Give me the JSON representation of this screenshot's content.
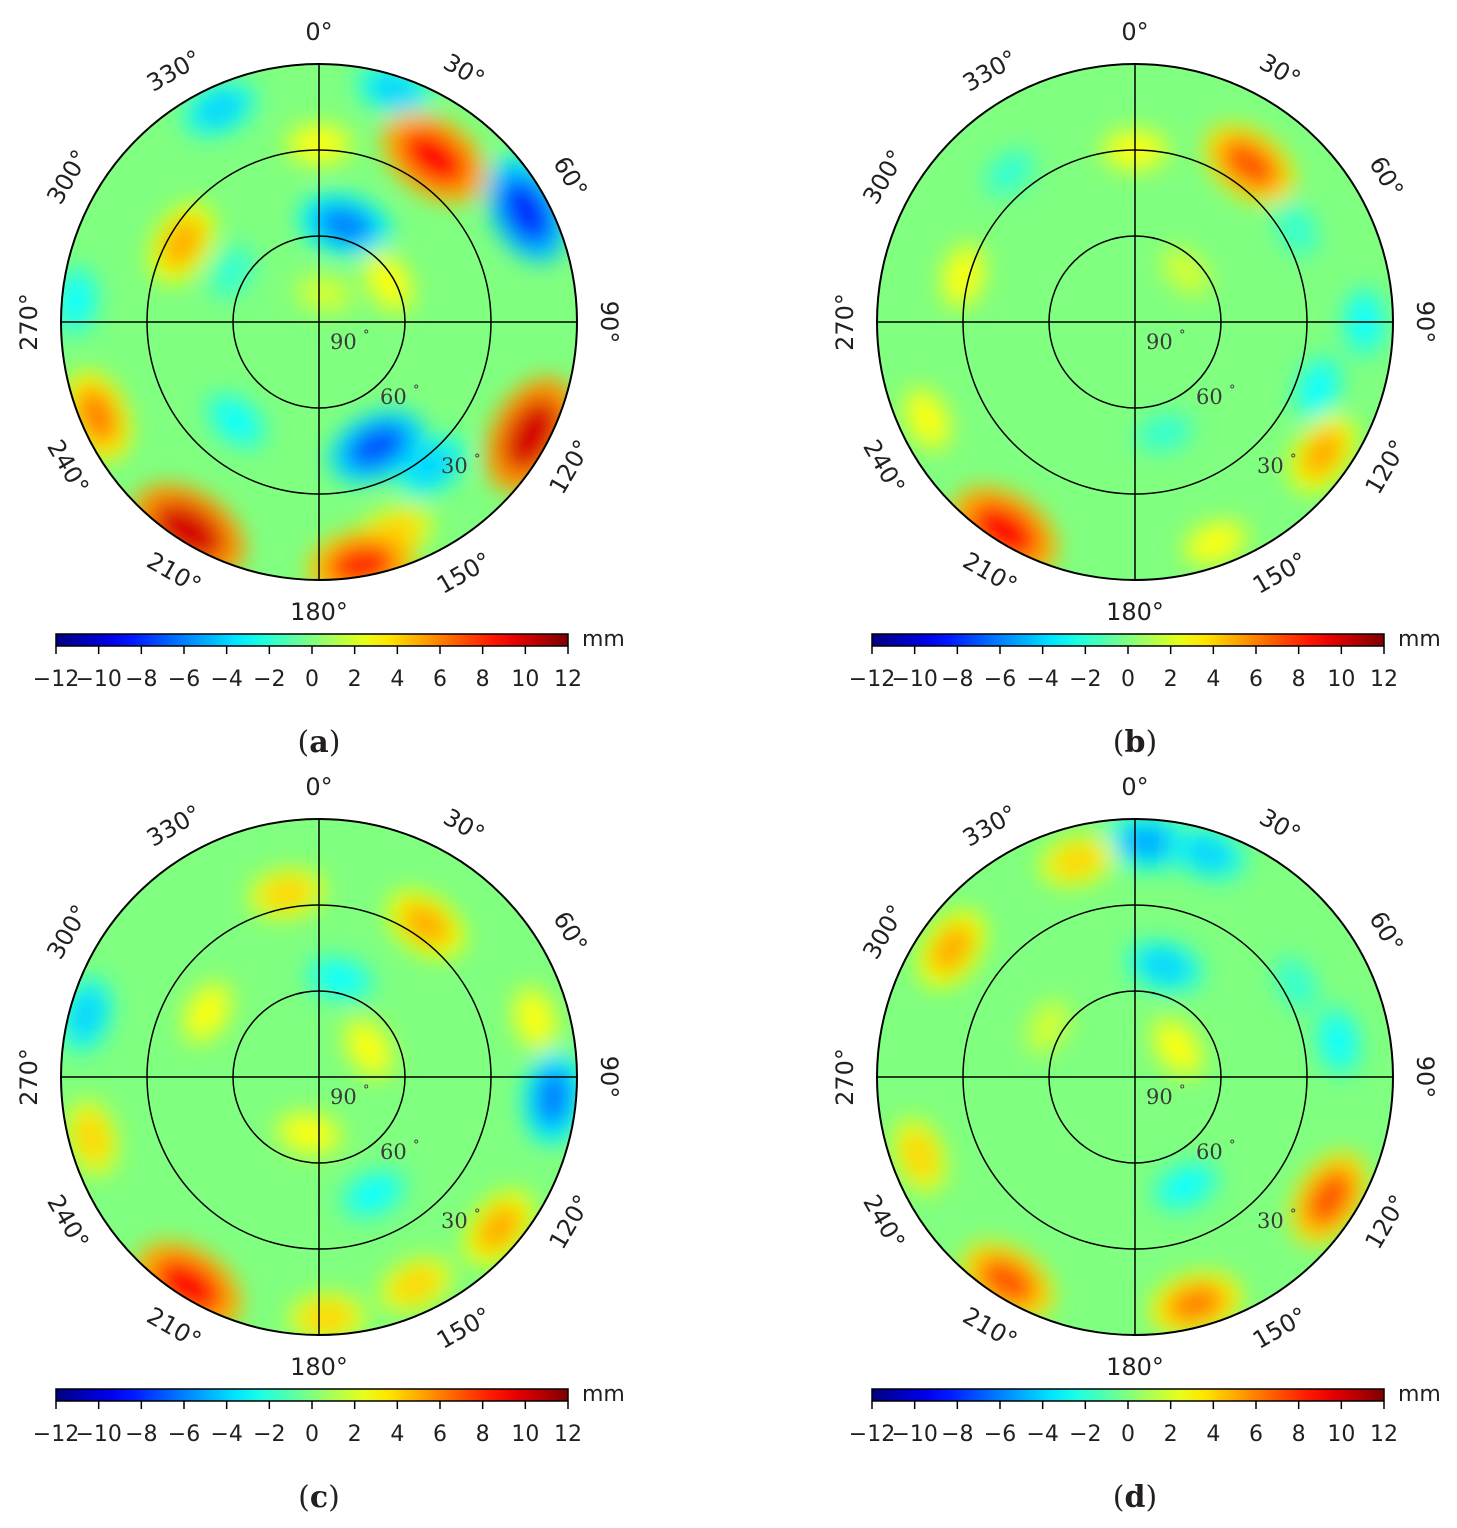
{
  "chart_data": [
    {
      "type": "heatmap",
      "projection": "polar sky plot",
      "panel_label": "a",
      "azimuth_labels": [
        "0°",
        "30°",
        "60°",
        "90°",
        "120°",
        "150°",
        "180°",
        "210°",
        "240°",
        "270°",
        "300°",
        "330°"
      ],
      "elevation_ring_labels": [
        "30",
        "60",
        "90"
      ],
      "elevation_unit_symbol": "°",
      "colorbar": {
        "unit": "mm",
        "range": [
          -12,
          12
        ],
        "ticks": [
          "−12",
          "−10",
          "−8",
          "−6",
          "−4",
          "−2",
          "0",
          "2",
          "4",
          "6",
          "8",
          "10",
          "12"
        ],
        "colormap": "jet"
      },
      "blobs": [
        {
          "az": 18,
          "el": 5,
          "value": -4
        },
        {
          "az": 35,
          "el": 20,
          "value": 9
        },
        {
          "az": 58,
          "el": 6,
          "value": -5
        },
        {
          "az": 62,
          "el": 8,
          "value": -8
        },
        {
          "az": 118,
          "el": 6,
          "value": 10
        },
        {
          "az": 142,
          "el": 26,
          "value": -4
        },
        {
          "az": 160,
          "el": 12,
          "value": 4
        },
        {
          "az": 170,
          "el": 4,
          "value": 8
        },
        {
          "az": 155,
          "el": 42,
          "value": -7
        },
        {
          "az": 212,
          "el": 4,
          "value": 10
        },
        {
          "az": 247,
          "el": 6,
          "value": 6
        },
        {
          "az": 275,
          "el": 5,
          "value": -3
        },
        {
          "az": 335,
          "el": 8,
          "value": -4
        },
        {
          "az": 0,
          "el": 28,
          "value": 3
        },
        {
          "az": 300,
          "el": 35,
          "value": 5
        },
        {
          "az": 15,
          "el": 55,
          "value": -6
        },
        {
          "az": 300,
          "el": 55,
          "value": -2
        },
        {
          "az": 60,
          "el": 62,
          "value": 3
        },
        {
          "az": 220,
          "el": 45,
          "value": -3
        },
        {
          "az": 10,
          "el": 80,
          "value": 2
        }
      ]
    },
    {
      "type": "heatmap",
      "projection": "polar sky plot",
      "panel_label": "b",
      "azimuth_labels": [
        "0°",
        "30°",
        "60°",
        "90°",
        "120°",
        "150°",
        "180°",
        "210°",
        "240°",
        "270°",
        "300°",
        "330°"
      ],
      "elevation_ring_labels": [
        "30",
        "60",
        "90"
      ],
      "elevation_unit_symbol": "°",
      "colorbar": {
        "unit": "mm",
        "range": [
          -12,
          12
        ],
        "ticks": [
          "−12",
          "−10",
          "−8",
          "−6",
          "−4",
          "−2",
          "0",
          "2",
          "4",
          "6",
          "8",
          "10",
          "12"
        ],
        "colormap": "jet"
      },
      "blobs": [
        {
          "az": 36,
          "el": 22,
          "value": 7
        },
        {
          "az": 0,
          "el": 30,
          "value": 3
        },
        {
          "az": 90,
          "el": 10,
          "value": -3
        },
        {
          "az": 110,
          "el": 22,
          "value": -3
        },
        {
          "az": 125,
          "el": 10,
          "value": 5
        },
        {
          "az": 160,
          "el": 8,
          "value": 3
        },
        {
          "az": 212,
          "el": 4,
          "value": 9
        },
        {
          "az": 245,
          "el": 10,
          "value": 3
        },
        {
          "az": 285,
          "el": 28,
          "value": 3
        },
        {
          "az": 320,
          "el": 22,
          "value": -2
        },
        {
          "az": 60,
          "el": 25,
          "value": -2
        },
        {
          "az": 165,
          "el": 50,
          "value": -2
        },
        {
          "az": 45,
          "el": 65,
          "value": 2
        }
      ]
    },
    {
      "type": "heatmap",
      "projection": "polar sky plot",
      "panel_label": "c",
      "azimuth_labels": [
        "0°",
        "30°",
        "60°",
        "90°",
        "120°",
        "150°",
        "180°",
        "210°",
        "240°",
        "270°",
        "300°",
        "330°"
      ],
      "elevation_ring_labels": [
        "30",
        "60",
        "90"
      ],
      "elevation_unit_symbol": "°",
      "colorbar": {
        "unit": "mm",
        "range": [
          -12,
          12
        ],
        "ticks": [
          "−12",
          "−10",
          "−8",
          "−6",
          "−4",
          "−2",
          "0",
          "2",
          "4",
          "6",
          "8",
          "10",
          "12"
        ],
        "colormap": "jet"
      },
      "blobs": [
        {
          "az": 35,
          "el": 25,
          "value": 5
        },
        {
          "az": 350,
          "el": 25,
          "value": 4
        },
        {
          "az": 12,
          "el": 55,
          "value": -3
        },
        {
          "az": 95,
          "el": 8,
          "value": -6
        },
        {
          "az": 75,
          "el": 12,
          "value": 3
        },
        {
          "az": 130,
          "el": 8,
          "value": 5
        },
        {
          "az": 155,
          "el": 10,
          "value": 4
        },
        {
          "az": 178,
          "el": 6,
          "value": 4
        },
        {
          "az": 212,
          "el": 4,
          "value": 9
        },
        {
          "az": 255,
          "el": 8,
          "value": 4
        },
        {
          "az": 285,
          "el": 6,
          "value": -4
        },
        {
          "az": 300,
          "el": 45,
          "value": 3
        },
        {
          "az": 155,
          "el": 45,
          "value": -3
        },
        {
          "az": 60,
          "el": 70,
          "value": 3
        },
        {
          "az": 190,
          "el": 70,
          "value": 3
        }
      ]
    },
    {
      "type": "heatmap",
      "projection": "polar sky plot",
      "panel_label": "d",
      "azimuth_labels": [
        "0°",
        "30°",
        "60°",
        "90°",
        "120°",
        "150°",
        "180°",
        "210°",
        "240°",
        "270°",
        "300°",
        "330°"
      ],
      "elevation_ring_labels": [
        "30",
        "60",
        "90"
      ],
      "elevation_unit_symbol": "°",
      "colorbar": {
        "unit": "mm",
        "range": [
          -12,
          12
        ],
        "ticks": [
          "−12",
          "−10",
          "−8",
          "−6",
          "−4",
          "−2",
          "0",
          "2",
          "4",
          "6",
          "8",
          "10",
          "12"
        ],
        "colormap": "jet"
      },
      "blobs": [
        {
          "az": 3,
          "el": 8,
          "value": -5
        },
        {
          "az": 18,
          "el": 8,
          "value": -4
        },
        {
          "az": 345,
          "el": 12,
          "value": 4
        },
        {
          "az": 305,
          "el": 12,
          "value": 5
        },
        {
          "az": 15,
          "el": 50,
          "value": -4
        },
        {
          "az": 60,
          "el": 25,
          "value": -2
        },
        {
          "az": 80,
          "el": 18,
          "value": -3
        },
        {
          "az": 122,
          "el": 10,
          "value": 7
        },
        {
          "az": 165,
          "el": 8,
          "value": 6
        },
        {
          "az": 212,
          "el": 6,
          "value": 7
        },
        {
          "az": 250,
          "el": 10,
          "value": 4
        },
        {
          "az": 155,
          "el": 48,
          "value": -3
        },
        {
          "az": 55,
          "el": 72,
          "value": 3
        },
        {
          "az": 300,
          "el": 55,
          "value": 2
        }
      ]
    }
  ]
}
